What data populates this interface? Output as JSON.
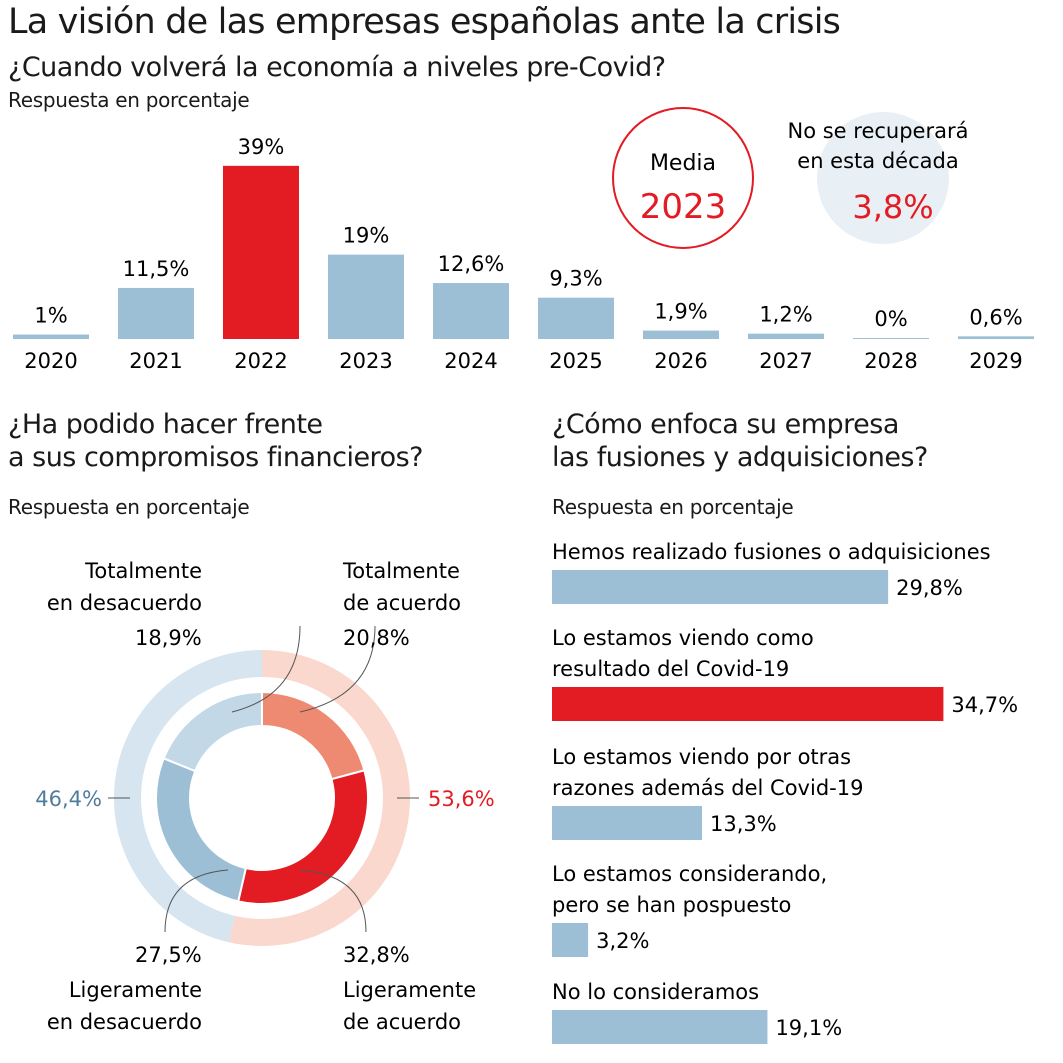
{
  "title": "La visión de las empresas españolas ante la crisis",
  "colors": {
    "blue": "#9dbfd5",
    "red": "#e31b23",
    "salmon": "#ef8a72",
    "light_blue": "#c2d8e6",
    "pale_blue": "#d6e5ef",
    "pale_red": "#fad8cd",
    "circle_bg": "#e8f0f6",
    "blue_text": "#4f7d9c"
  },
  "chart_data": [
    {
      "type": "bar",
      "title": "¿Cuando volverá la economía a niveles pre-Covid?",
      "subtitle": "Respuesta en porcentaje",
      "categories": [
        "2020",
        "2021",
        "2022",
        "2023",
        "2024",
        "2025",
        "2026",
        "2027",
        "2028",
        "2029"
      ],
      "values": [
        1,
        11.5,
        39,
        19,
        12.6,
        9.3,
        1.9,
        1.2,
        0,
        0.6
      ],
      "labels": [
        "1%",
        "11,5%",
        "39%",
        "19%",
        "12,6%",
        "9,3%",
        "1,9%",
        "1,2%",
        "0%",
        "0,6%"
      ],
      "highlight": "2022",
      "annotations": {
        "media_label": "Media",
        "media_value": "2023",
        "norec_label1": "No se recuperará",
        "norec_label2": "en esta década",
        "norec_value": "3,8%"
      }
    },
    {
      "type": "pie",
      "title1": "¿Ha podido hacer frente",
      "title2": "a sus compromisos financieros?",
      "subtitle": "Respuesta en porcentaje",
      "slices": [
        {
          "name1": "Totalmente",
          "name2": "de acuerdo",
          "value": 20.8,
          "label": "20,8%",
          "color": "#ef8a72"
        },
        {
          "name1": "Ligeramente",
          "name2": "de acuerdo",
          "value": 32.8,
          "label": "32,8%",
          "color": "#e31b23"
        },
        {
          "name1": "Ligeramente",
          "name2": "en  desacuerdo",
          "value": 27.5,
          "label": "27,5%",
          "color": "#9dbfd5"
        },
        {
          "name1": "Totalmente",
          "name2": "en  desacuerdo",
          "value": 18.9,
          "label": "18,9%",
          "color": "#c2d8e6"
        }
      ],
      "totals": [
        {
          "value": 53.6,
          "label": "53,6%"
        },
        {
          "value": 46.4,
          "label": "46,4%"
        }
      ]
    },
    {
      "type": "bar",
      "orientation": "horizontal",
      "title1": "¿Cómo enfoca su empresa",
      "title2": "las fusiones y adquisiciones?",
      "subtitle": "Respuesta en porcentaje",
      "items": [
        {
          "line1": "Hemos realizado fusiones o adquisiciones",
          "line2": "",
          "value": 29.8,
          "label": "29,8%"
        },
        {
          "line1": "Lo estamos viendo como",
          "line2": "resultado del Covid-19",
          "value": 34.7,
          "label": "34,7%",
          "highlight": true
        },
        {
          "line1": "Lo estamos viendo por otras",
          "line2": "razones además del Covid-19",
          "value": 13.3,
          "label": "13,3%"
        },
        {
          "line1": "Lo estamos considerando,",
          "line2": "pero se han pospuesto",
          "value": 3.2,
          "label": "3,2%"
        },
        {
          "line1": "No lo consideramos",
          "line2": "",
          "value": 19.1,
          "label": "19,1%"
        }
      ]
    }
  ]
}
